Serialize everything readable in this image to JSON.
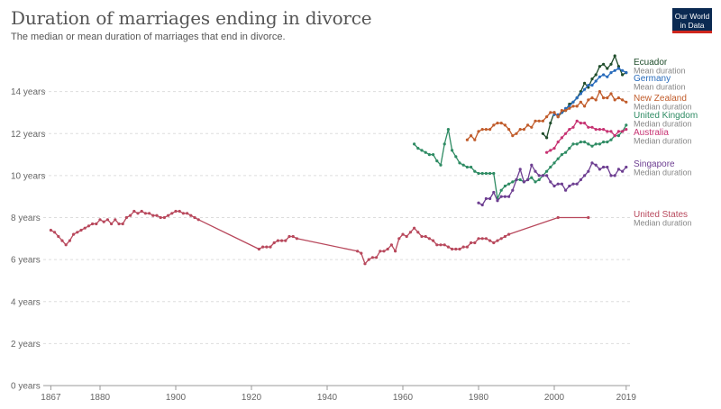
{
  "header": {
    "title": "Duration of marriages ending in divorce",
    "subtitle": "The median or mean duration of marriages that end in divorce.",
    "logo_line1": "Our World",
    "logo_line2": "in Data"
  },
  "chart_data": {
    "type": "line",
    "title": "Duration of marriages ending in divorce",
    "subtitle": "The median or mean duration of marriages that end in divorce.",
    "xlabel": "",
    "ylabel": "",
    "xlim": [
      1865,
      2020
    ],
    "ylim": [
      0,
      16
    ],
    "yticks": [
      0,
      2,
      4,
      6,
      8,
      10,
      12,
      14
    ],
    "ytick_labels": [
      "0 years",
      "2 years",
      "4 years",
      "6 years",
      "8 years",
      "10 years",
      "12 years",
      "14 years"
    ],
    "xticks": [
      1867,
      1880,
      1900,
      1920,
      1940,
      1960,
      1980,
      2000,
      2019
    ],
    "xtick_labels": [
      "1867",
      "1880",
      "1900",
      "1920",
      "1940",
      "1960",
      "1980",
      "2000",
      "2019"
    ],
    "grid": "horizontal dashed",
    "legend": "right, labels at line ends",
    "series": [
      {
        "name": "Ecuador",
        "measure": "Mean duration",
        "color": "#1f4d2b",
        "x": [
          1997,
          1998,
          1999,
          2000,
          2001,
          2002,
          2003,
          2004,
          2005,
          2006,
          2007,
          2008,
          2009,
          2010,
          2011,
          2012,
          2013,
          2014,
          2015,
          2016,
          2017,
          2018,
          2019
        ],
        "y": [
          12.0,
          11.8,
          12.5,
          13.0,
          12.8,
          13.0,
          13.1,
          13.4,
          13.5,
          13.7,
          14.0,
          14.4,
          14.2,
          14.6,
          14.8,
          15.2,
          15.3,
          15.1,
          15.3,
          15.7,
          15.2,
          14.8,
          14.9
        ]
      },
      {
        "name": "Germany",
        "measure": "Mean duration",
        "color": "#286bbb",
        "x": [
          2000,
          2001,
          2002,
          2003,
          2004,
          2005,
          2006,
          2007,
          2008,
          2009,
          2010,
          2011,
          2012,
          2013,
          2014,
          2015,
          2016,
          2017,
          2018,
          2019
        ],
        "y": [
          12.9,
          12.9,
          13.0,
          13.2,
          13.3,
          13.5,
          13.7,
          13.9,
          14.1,
          14.3,
          14.3,
          14.5,
          14.7,
          14.8,
          14.7,
          14.9,
          15.0,
          15.1,
          15.0,
          14.9
        ]
      },
      {
        "name": "New Zealand",
        "measure": "Median duration",
        "color": "#c15c2b",
        "x": [
          1977,
          1978,
          1979,
          1980,
          1981,
          1982,
          1983,
          1984,
          1985,
          1986,
          1987,
          1988,
          1989,
          1990,
          1991,
          1992,
          1993,
          1994,
          1995,
          1996,
          1997,
          1998,
          1999,
          2000,
          2001,
          2002,
          2003,
          2004,
          2005,
          2006,
          2007,
          2008,
          2009,
          2010,
          2011,
          2012,
          2013,
          2014,
          2015,
          2016,
          2017,
          2018,
          2019
        ],
        "y": [
          11.7,
          11.9,
          11.7,
          12.1,
          12.2,
          12.2,
          12.2,
          12.4,
          12.5,
          12.5,
          12.4,
          12.2,
          11.9,
          12.0,
          12.2,
          12.2,
          12.4,
          12.3,
          12.6,
          12.6,
          12.6,
          12.8,
          13.0,
          13.0,
          12.8,
          13.1,
          13.1,
          13.2,
          13.3,
          13.3,
          13.5,
          13.3,
          13.6,
          13.7,
          13.6,
          14.0,
          13.7,
          13.7,
          13.9,
          13.6,
          13.7,
          13.6,
          13.5
        ]
      },
      {
        "name": "United Kingdom",
        "measure": "Median duration",
        "color": "#2e8b63",
        "x": [
          1963,
          1964,
          1965,
          1966,
          1967,
          1968,
          1969,
          1970,
          1971,
          1972,
          1973,
          1974,
          1975,
          1976,
          1977,
          1978,
          1979,
          1980,
          1981,
          1982,
          1983,
          1984,
          1985,
          1986,
          1987,
          1988,
          1989,
          1990,
          1991,
          1992,
          1993,
          1994,
          1995,
          1996,
          1997,
          1998,
          1999,
          2000,
          2001,
          2002,
          2003,
          2004,
          2005,
          2006,
          2007,
          2008,
          2009,
          2010,
          2011,
          2012,
          2013,
          2014,
          2015,
          2016,
          2017,
          2018,
          2019
        ],
        "y": [
          11.5,
          11.3,
          11.2,
          11.1,
          11.0,
          11.0,
          10.7,
          10.5,
          11.5,
          12.2,
          11.2,
          10.9,
          10.6,
          10.5,
          10.4,
          10.4,
          10.2,
          10.1,
          10.1,
          10.1,
          10.1,
          10.1,
          8.9,
          9.3,
          9.5,
          9.6,
          9.7,
          9.8,
          9.8,
          9.7,
          9.8,
          9.9,
          9.7,
          9.8,
          10.0,
          10.2,
          10.4,
          10.6,
          10.8,
          11.0,
          11.1,
          11.3,
          11.5,
          11.5,
          11.6,
          11.6,
          11.5,
          11.4,
          11.5,
          11.5,
          11.6,
          11.6,
          11.7,
          11.9,
          11.9,
          12.1,
          12.4
        ]
      },
      {
        "name": "Australia",
        "measure": "Median duration",
        "color": "#c73272",
        "x": [
          1998,
          1999,
          2000,
          2001,
          2002,
          2003,
          2004,
          2005,
          2006,
          2007,
          2008,
          2009,
          2010,
          2011,
          2012,
          2013,
          2014,
          2015,
          2016,
          2017,
          2018,
          2019
        ],
        "y": [
          11.1,
          11.2,
          11.3,
          11.6,
          11.8,
          12.0,
          12.2,
          12.3,
          12.6,
          12.5,
          12.5,
          12.3,
          12.3,
          12.2,
          12.2,
          12.2,
          12.1,
          12.1,
          11.9,
          12.1,
          12.1,
          12.2
        ]
      },
      {
        "name": "Singapore",
        "measure": "Median duration",
        "color": "#6d3e91",
        "x": [
          1980,
          1981,
          1982,
          1983,
          1984,
          1985,
          1986,
          1987,
          1988,
          1989,
          1990,
          1991,
          1992,
          1993,
          1994,
          1995,
          1996,
          1997,
          1998,
          1999,
          2000,
          2001,
          2002,
          2003,
          2004,
          2005,
          2006,
          2007,
          2008,
          2009,
          2010,
          2011,
          2012,
          2013,
          2014,
          2015,
          2016,
          2017,
          2018,
          2019
        ],
        "y": [
          8.7,
          8.6,
          8.9,
          8.9,
          9.2,
          8.8,
          9.0,
          9.0,
          9.0,
          9.3,
          9.8,
          10.3,
          9.7,
          9.8,
          10.5,
          10.2,
          10.0,
          10.0,
          10.0,
          9.7,
          9.5,
          9.6,
          9.6,
          9.3,
          9.5,
          9.6,
          9.6,
          9.8,
          10.0,
          10.2,
          10.6,
          10.5,
          10.3,
          10.4,
          10.4,
          10.0,
          10.0,
          10.3,
          10.2,
          10.4
        ]
      },
      {
        "name": "United States",
        "measure": "Median duration",
        "color": "#b8485c",
        "x": [
          1867,
          1868,
          1869,
          1870,
          1871,
          1872,
          1873,
          1874,
          1875,
          1876,
          1877,
          1878,
          1879,
          1880,
          1881,
          1882,
          1883,
          1884,
          1885,
          1886,
          1887,
          1888,
          1889,
          1890,
          1891,
          1892,
          1893,
          1894,
          1895,
          1896,
          1897,
          1898,
          1899,
          1900,
          1901,
          1902,
          1903,
          1904,
          1905,
          1906,
          1922,
          1923,
          1924,
          1925,
          1926,
          1927,
          1928,
          1929,
          1930,
          1931,
          1932,
          1948,
          1949,
          1950,
          1951,
          1952,
          1953,
          1954,
          1955,
          1956,
          1957,
          1958,
          1959,
          1960,
          1961,
          1962,
          1963,
          1964,
          1965,
          1966,
          1967,
          1968,
          1969,
          1970,
          1971,
          1972,
          1973,
          1974,
          1975,
          1976,
          1977,
          1978,
          1979,
          1980,
          1981,
          1982,
          1983,
          1984,
          1985,
          1986,
          1987,
          1988,
          2001,
          2009
        ],
        "y": [
          7.4,
          7.3,
          7.1,
          6.9,
          6.7,
          6.9,
          7.2,
          7.3,
          7.4,
          7.5,
          7.6,
          7.7,
          7.7,
          7.9,
          7.8,
          7.9,
          7.7,
          7.9,
          7.7,
          7.7,
          8.0,
          8.1,
          8.3,
          8.2,
          8.3,
          8.2,
          8.2,
          8.1,
          8.1,
          8.0,
          8.0,
          8.1,
          8.2,
          8.3,
          8.3,
          8.2,
          8.2,
          8.1,
          8.0,
          7.9,
          6.5,
          6.6,
          6.6,
          6.6,
          6.8,
          6.9,
          6.9,
          6.9,
          7.1,
          7.1,
          7.0,
          6.4,
          6.3,
          5.8,
          6.0,
          6.1,
          6.1,
          6.4,
          6.4,
          6.5,
          6.7,
          6.4,
          7.0,
          7.2,
          7.1,
          7.3,
          7.5,
          7.3,
          7.1,
          7.1,
          7.0,
          6.9,
          6.7,
          6.7,
          6.7,
          6.6,
          6.5,
          6.5,
          6.5,
          6.6,
          6.6,
          6.8,
          6.8,
          7.0,
          7.0,
          7.0,
          6.9,
          6.8,
          6.9,
          7.0,
          7.1,
          7.2,
          8.0,
          8.0
        ]
      }
    ]
  }
}
